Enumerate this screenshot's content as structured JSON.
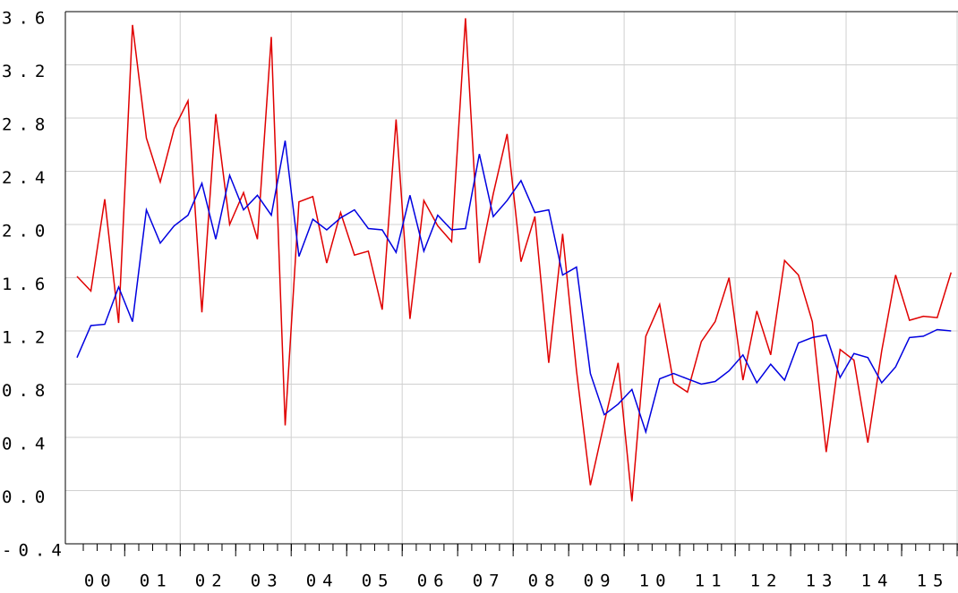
{
  "chart_data": {
    "type": "line",
    "x": [
      0,
      1,
      2,
      3,
      4,
      5,
      6,
      7,
      8,
      9,
      10,
      11,
      12,
      13,
      14,
      15,
      16,
      17,
      18,
      19,
      20,
      21,
      22,
      23,
      24,
      25,
      26,
      27,
      28,
      29,
      30,
      31,
      32,
      33,
      34,
      35,
      36,
      37,
      38,
      39,
      40,
      41,
      42,
      43,
      44,
      45,
      46,
      47,
      48,
      49,
      50,
      51,
      52,
      53,
      54,
      55,
      56,
      57,
      58,
      59,
      60,
      61,
      62,
      63
    ],
    "series": [
      {
        "color": "#e00000",
        "values": [
          1.61,
          1.5,
          2.19,
          1.26,
          3.5,
          2.65,
          2.32,
          2.72,
          2.93,
          1.34,
          2.83,
          2.0,
          2.24,
          1.89,
          3.41,
          0.49,
          2.17,
          2.21,
          1.71,
          2.09,
          1.77,
          1.8,
          1.36,
          2.79,
          1.29,
          2.18,
          1.99,
          1.87,
          3.55,
          1.71,
          2.23,
          2.68,
          1.72,
          2.06,
          0.96,
          1.93,
          0.9,
          0.04,
          0.51,
          0.96,
          -0.08,
          1.16,
          1.4,
          0.81,
          0.74,
          1.12,
          1.27,
          1.6,
          0.83,
          1.35,
          1.02,
          1.73,
          1.62,
          1.27,
          0.29,
          1.06,
          0.98,
          0.36,
          1.05,
          1.62,
          1.28,
          1.31,
          1.3,
          1.64
        ]
      },
      {
        "color": "#0000e0",
        "values": [
          1.0,
          1.24,
          1.25,
          1.53,
          1.27,
          2.11,
          1.86,
          1.99,
          2.07,
          2.31,
          1.89,
          2.37,
          2.11,
          2.22,
          2.07,
          2.63,
          1.76,
          2.04,
          1.96,
          2.05,
          2.11,
          1.97,
          1.96,
          1.79,
          2.22,
          1.8,
          2.07,
          1.96,
          1.97,
          2.53,
          2.06,
          2.18,
          2.33,
          2.09,
          2.11,
          1.62,
          1.68,
          0.88,
          0.57,
          0.65,
          0.76,
          0.44,
          0.84,
          0.88,
          0.84,
          0.8,
          0.82,
          0.9,
          1.02,
          0.81,
          0.95,
          0.83,
          1.11,
          1.15,
          1.17,
          0.85,
          1.03,
          1.0,
          0.81,
          0.93,
          1.15,
          1.16,
          1.21,
          1.2
        ]
      }
    ],
    "xlim": [
      -0.84,
      63.5
    ],
    "xticks": [
      {
        "value": 1.5,
        "label": "00"
      },
      {
        "value": 5.5,
        "label": "01"
      },
      {
        "value": 9.5,
        "label": "02"
      },
      {
        "value": 13.5,
        "label": "03"
      },
      {
        "value": 17.5,
        "label": "04"
      },
      {
        "value": 21.5,
        "label": "05"
      },
      {
        "value": 25.5,
        "label": "06"
      },
      {
        "value": 29.5,
        "label": "07"
      },
      {
        "value": 33.5,
        "label": "08"
      },
      {
        "value": 37.5,
        "label": "09"
      },
      {
        "value": 41.5,
        "label": "10"
      },
      {
        "value": 45.5,
        "label": "11"
      },
      {
        "value": 49.5,
        "label": "12"
      },
      {
        "value": 53.5,
        "label": "13"
      },
      {
        "value": 57.5,
        "label": "14"
      },
      {
        "value": 61.5,
        "label": "15"
      }
    ],
    "ylim": [
      -0.4,
      3.6
    ],
    "yticks": [
      -0.4,
      {
        "value": 0,
        "label": "0.0"
      },
      0.4,
      0.8,
      1.2,
      1.6,
      {
        "value": 2,
        "label": "2.0"
      },
      2.4,
      2.8,
      3.2,
      3.6
    ],
    "grid": true
  }
}
